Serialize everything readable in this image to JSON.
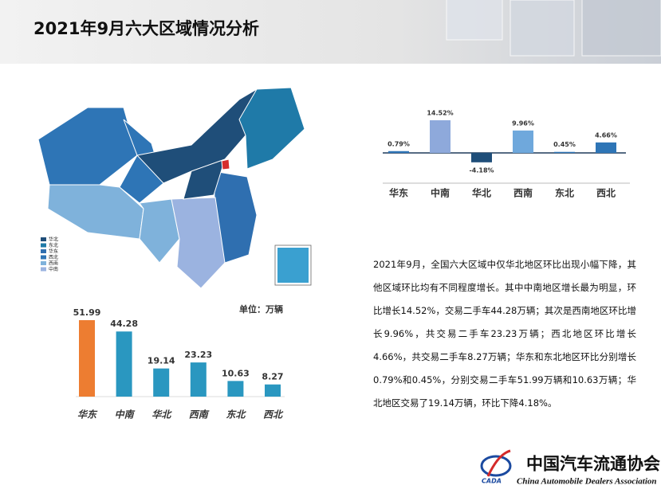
{
  "header": {
    "title": "2021年9月六大区域情况分析"
  },
  "map": {
    "legend": [
      "华北",
      "东北",
      "华东",
      "西北",
      "西南",
      "中南"
    ]
  },
  "chart_data": [
    {
      "type": "bar",
      "categories": [
        "华东",
        "中南",
        "华北",
        "西南",
        "东北",
        "西北"
      ],
      "values": [
        0.79,
        14.52,
        -4.18,
        9.96,
        0.45,
        4.66
      ],
      "value_labels": [
        "0.79%",
        "14.52%",
        "-4.18%",
        "9.96%",
        "0.45%",
        "4.66%"
      ],
      "colors": [
        "#2e75b6",
        "#8ea9db",
        "#1f4e79",
        "#6fa8dc",
        "#2e75b6",
        "#2e75b6"
      ]
    },
    {
      "type": "bar",
      "unit_label": "单位：万辆",
      "categories": [
        "华东",
        "中南",
        "华北",
        "西南",
        "东北",
        "西北"
      ],
      "values": [
        51.99,
        44.28,
        19.14,
        23.23,
        10.63,
        8.27
      ],
      "colors": [
        "#ed7d31",
        "#2a97c0",
        "#2a97c0",
        "#2a97c0",
        "#2a97c0",
        "#2a97c0"
      ]
    }
  ],
  "paragraph": "2021年9月，全国六大区域中仅华北地区环比出现小幅下降，其他区域环比均有不同程度增长。其中中南地区增长最为明显，环比增长14.52%，交易二手车44.28万辆；其次是西南地区环比增长9.96%，共交易二手车23.23万辆；西北地区环比增长4.66%，共交易二手车8.27万辆；华东和东北地区环比分别增长0.79%和0.45%，分别交易二手车51.99万辆和10.63万辆；华北地区交易了19.14万辆，环比下降4.18%。",
  "logo": {
    "cn": "中国汽车流通协会",
    "en": "China Automobile Dealers Association",
    "abbr": "CADA"
  }
}
